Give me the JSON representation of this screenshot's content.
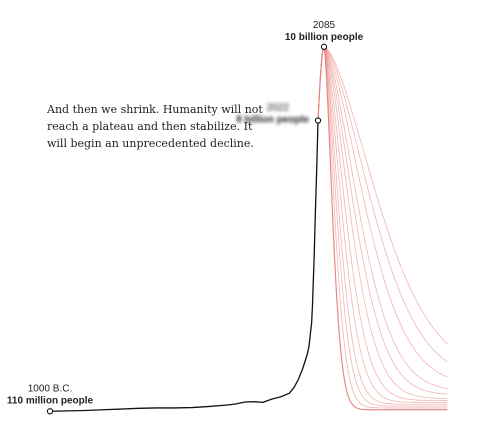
{
  "narrative": "And then we shrink. Humanity will not reach a plateau and then stabilize. It will begin an unprecedented decline.",
  "colors": {
    "history": "#111111",
    "projection": "#e8837f",
    "marker_fill": "#ffffff",
    "text": "#222222"
  },
  "chart_data": {
    "type": "line",
    "title": "",
    "xlabel": "",
    "ylabel": "",
    "grid": false,
    "legend": "none",
    "x_unit": "year",
    "y_unit": "billion people",
    "xlim": [
      -1000,
      2300
    ],
    "ylim": [
      0,
      10.4
    ],
    "history": {
      "x": [
        -1000,
        -800,
        -600,
        -400,
        -200,
        1,
        200,
        400,
        600,
        800,
        1000,
        1100,
        1200,
        1300,
        1400,
        1500,
        1600,
        1700,
        1750,
        1800,
        1850,
        1900,
        1920,
        1940,
        1950,
        1960,
        1970,
        1980,
        1990,
        2000,
        2010,
        2022
      ],
      "y": [
        0.11,
        0.12,
        0.13,
        0.15,
        0.17,
        0.19,
        0.2,
        0.2,
        0.21,
        0.24,
        0.28,
        0.31,
        0.36,
        0.37,
        0.35,
        0.44,
        0.5,
        0.6,
        0.75,
        0.97,
        1.27,
        1.65,
        1.86,
        2.3,
        2.5,
        3.0,
        3.7,
        4.4,
        5.3,
        6.1,
        6.9,
        8.0
      ]
    },
    "projection_peak": {
      "x": 2085,
      "y": 10.0
    },
    "projection_bottoms": [
      0.15,
      0.2,
      0.25,
      0.3,
      0.35,
      0.4,
      0.45,
      0.55,
      0.65,
      0.8,
      0.95,
      1.1
    ],
    "projection_decays": [
      20,
      25,
      30,
      35,
      42,
      50,
      60,
      70,
      80,
      95,
      110,
      125
    ],
    "projection_x_end": 2300,
    "points": [
      {
        "year": "1000 B.C.",
        "value": "110 million people",
        "x": -1000,
        "y": 0.11
      },
      {
        "year": "2022",
        "value": "8 billion people",
        "x": 2022,
        "y": 8.0,
        "blurred": true
      },
      {
        "year": "2085",
        "value": "10 billion people",
        "x": 2085,
        "y": 10.0
      }
    ]
  }
}
